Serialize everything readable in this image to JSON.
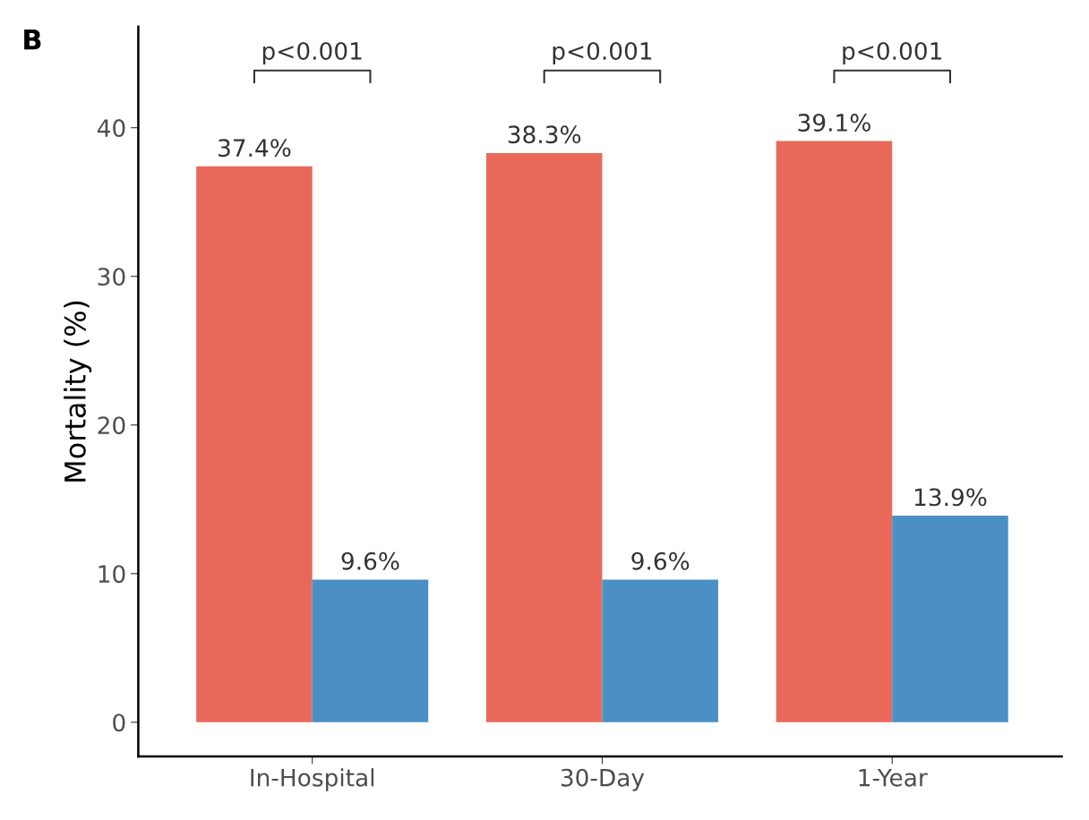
{
  "chart_data": {
    "type": "bar",
    "ylabel": "Mortality (%)",
    "categories": [
      "In-Hospital",
      "30-Day",
      "1-Year"
    ],
    "series": [
      {
        "color": "#e8695a",
        "values": [
          37.4,
          38.3,
          39.1
        ],
        "value_labels": [
          "37.4%",
          "38.3%",
          "39.1%"
        ]
      },
      {
        "color": "#4a90c4",
        "values": [
          9.6,
          9.6,
          13.9
        ],
        "value_labels": [
          "9.6%",
          "9.6%",
          "13.9%"
        ]
      }
    ],
    "ylim": [
      -2.3,
      46.8
    ],
    "yticks": [
      0,
      10,
      20,
      30,
      40
    ],
    "grid": false,
    "legend": false,
    "annotations": [
      "B",
      "p<0.001",
      "p<0.001",
      "p<0.001"
    ]
  }
}
